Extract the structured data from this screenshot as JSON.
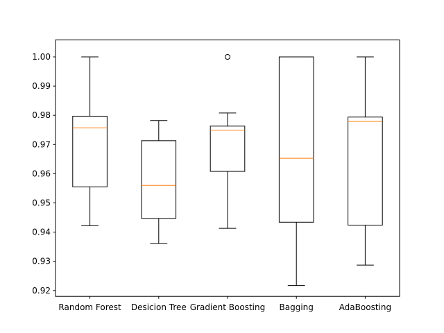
{
  "chart_data": {
    "type": "box",
    "title": "",
    "xlabel": "",
    "ylabel": "",
    "ylim": [
      0.918,
      1.0058
    ],
    "y_ticks": [
      0.92,
      0.93,
      0.94,
      0.95,
      0.96,
      0.97,
      0.98,
      0.99,
      1.0
    ],
    "y_tick_labels": [
      "0.92",
      "0.93",
      "0.94",
      "0.95",
      "0.96",
      "0.97",
      "0.98",
      "0.99",
      "1.00"
    ],
    "grid": false,
    "colors": {
      "box": "#000000",
      "median": "#ff7f0e",
      "flier": "#000000"
    },
    "boxes": [
      {
        "label": "Random Forest",
        "whisker_low": 0.9422,
        "q1": 0.9555,
        "median": 0.9757,
        "q3": 0.9797,
        "whisker_high": 1.0,
        "fliers": []
      },
      {
        "label": "Desicion Tree",
        "whisker_low": 0.9361,
        "q1": 0.9447,
        "median": 0.956,
        "q3": 0.9713,
        "whisker_high": 0.9782,
        "fliers": []
      },
      {
        "label": "Gradient Boosting",
        "whisker_low": 0.9413,
        "q1": 0.9608,
        "median": 0.9749,
        "q3": 0.9763,
        "whisker_high": 0.9808,
        "fliers": [
          1.0
        ]
      },
      {
        "label": "Bagging",
        "whisker_low": 0.9217,
        "q1": 0.9434,
        "median": 0.9653,
        "q3": 1.0,
        "whisker_high": 1.0,
        "fliers": []
      },
      {
        "label": "AdaBoosting",
        "whisker_low": 0.9287,
        "q1": 0.9424,
        "median": 0.9779,
        "q3": 0.9794,
        "whisker_high": 1.0,
        "fliers": []
      }
    ]
  }
}
